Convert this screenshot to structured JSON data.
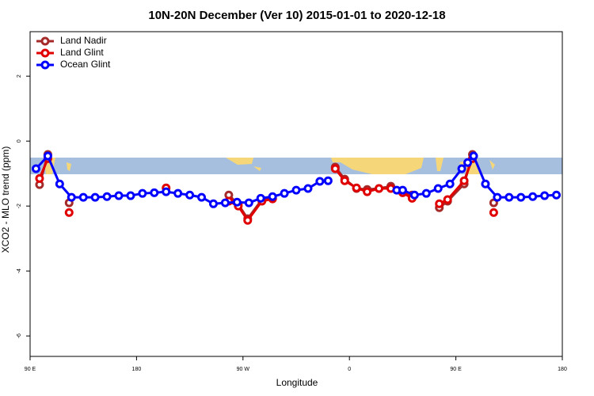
{
  "chart_data": {
    "type": "line",
    "title": "10N-20N December (Ver 10)   2015-01-01 to 2020-12-18",
    "x_label": "Longitude",
    "y_label": "XCO2 - MLO trend (ppm)",
    "xlim": [
      90,
      540
    ],
    "ylim": [
      -6.63,
      3.37
    ],
    "xticks": [
      {
        "value": 90,
        "label": "90 E"
      },
      180,
      {
        "value": 270,
        "label": "90 W"
      },
      {
        "value": 360,
        "label": "0"
      },
      {
        "value": 450,
        "label": "90 E"
      },
      {
        "value": 540,
        "label": "180"
      }
    ],
    "yticks": [
      2,
      0,
      -2,
      -4,
      -6
    ],
    "legend": "top-left",
    "series": [
      {
        "name": "Land Nadir",
        "color": "#a52a2a",
        "x": [
          98,
          105,
          null,
          123,
          null,
          258,
          266,
          274,
          286,
          295,
          null,
          348,
          356,
          366,
          375,
          385,
          395,
          405,
          413,
          null,
          436,
          443,
          457,
          464,
          null,
          482
        ],
        "values": [
          -1.34,
          -0.41,
          null,
          -1.9,
          null,
          -1.66,
          -1.95,
          -2.39,
          -1.8,
          -1.76,
          null,
          -0.8,
          -1.17,
          -1.46,
          -1.49,
          -1.46,
          -1.39,
          -1.54,
          -1.66,
          null,
          -2.05,
          -1.85,
          -1.32,
          -0.41,
          null,
          -1.9
        ]
      },
      {
        "name": "Land Glint",
        "color": "#e00000",
        "x": [
          98,
          105,
          null,
          123,
          null,
          205,
          null,
          258,
          266,
          274,
          286,
          295,
          null,
          348,
          356,
          366,
          375,
          385,
          395,
          405,
          413,
          null,
          436,
          443,
          457,
          464,
          null,
          482
        ],
        "values": [
          -1.15,
          -0.54,
          null,
          -2.2,
          null,
          -1.44,
          null,
          -1.85,
          -2.0,
          -2.44,
          -1.85,
          -1.78,
          null,
          -0.85,
          -1.22,
          -1.44,
          -1.56,
          -1.46,
          -1.46,
          -1.59,
          -1.76,
          null,
          -1.93,
          -1.8,
          -1.22,
          -0.54,
          null,
          -2.2
        ]
      },
      {
        "name": "Ocean Glint",
        "color": "#0000ff",
        "x": [
          95,
          105,
          115,
          125,
          135,
          145,
          155,
          165,
          175,
          185,
          195,
          205,
          215,
          225,
          235,
          245,
          255,
          265,
          275,
          285,
          295,
          305,
          315,
          325,
          335,
          342,
          null,
          400,
          405,
          415,
          425,
          435,
          445,
          455,
          460,
          465,
          475,
          485,
          495,
          505,
          515,
          525,
          535
        ],
        "values": [
          -0.85,
          -0.46,
          -1.32,
          -1.73,
          -1.73,
          -1.73,
          -1.71,
          -1.68,
          -1.68,
          -1.61,
          -1.59,
          -1.56,
          -1.61,
          -1.66,
          -1.73,
          -1.93,
          -1.9,
          -1.88,
          -1.9,
          -1.76,
          -1.71,
          -1.61,
          -1.51,
          -1.46,
          -1.24,
          -1.22,
          null,
          -1.51,
          -1.51,
          -1.66,
          -1.61,
          -1.46,
          -1.32,
          -0.85,
          -0.66,
          -0.46,
          -1.32,
          -1.73,
          -1.73,
          -1.73,
          -1.71,
          -1.68,
          -1.66
        ]
      }
    ]
  }
}
